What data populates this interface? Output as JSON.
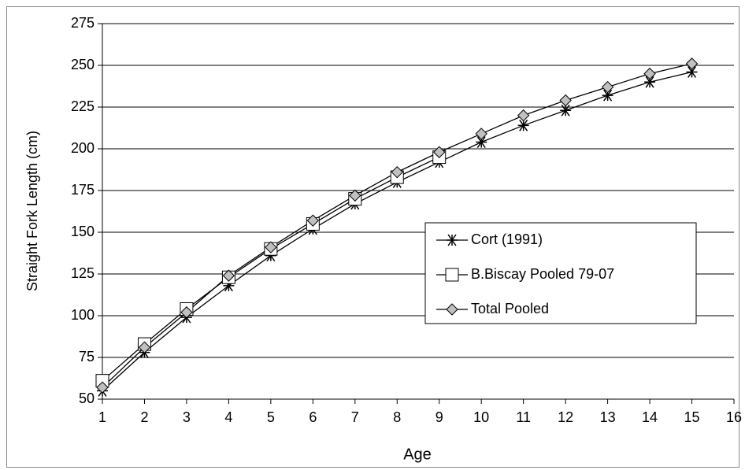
{
  "chart_data": {
    "type": "line",
    "xlabel": "Age",
    "ylabel": "Straight Fork Length (cm)",
    "x": [
      1,
      2,
      3,
      4,
      5,
      6,
      7,
      8,
      9,
      10,
      11,
      12,
      13,
      14,
      15
    ],
    "series": [
      {
        "name": "Cort (1991)",
        "color": "#000000",
        "marker": "star",
        "values": [
          55,
          78,
          99,
          118,
          136,
          152,
          167,
          180,
          192,
          204,
          214,
          223,
          232,
          240,
          246
        ]
      },
      {
        "name": "B.Biscay Pooled 79-07",
        "color": "#000000",
        "marker": "square",
        "values": [
          61,
          83,
          104,
          123,
          140,
          155,
          170,
          183,
          195,
          null,
          null,
          null,
          null,
          null,
          null
        ]
      },
      {
        "name": "Total Pooled",
        "color": "#000000",
        "marker": "diamond",
        "values": [
          57,
          81,
          102,
          124,
          141,
          157,
          172,
          186,
          198,
          209,
          220,
          229,
          237,
          245,
          251
        ]
      }
    ],
    "xlim": [
      1,
      16
    ],
    "xticks": [
      1,
      2,
      3,
      4,
      5,
      6,
      7,
      8,
      9,
      10,
      11,
      12,
      13,
      14,
      15,
      16
    ],
    "ylim": [
      50,
      275
    ],
    "yticks": [
      50,
      75,
      100,
      125,
      150,
      175,
      200,
      225,
      250,
      275
    ],
    "grid": true,
    "legend": "right"
  }
}
